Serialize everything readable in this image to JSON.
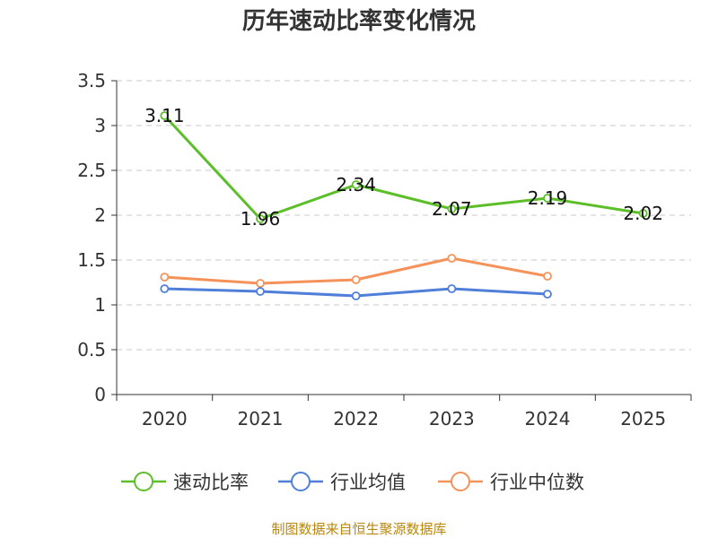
{
  "chart_data": {
    "type": "line",
    "title": "历年速动比率变化情况",
    "categories": [
      "2020",
      "2021",
      "2022",
      "2023",
      "2024",
      "2025"
    ],
    "ylim": [
      0,
      3.5
    ],
    "yticks": [
      "0",
      "0.5",
      "1",
      "1.5",
      "2",
      "2.5",
      "3",
      "3.5"
    ],
    "grid": true,
    "legend_position": "bottom",
    "series": [
      {
        "name": "速动比率",
        "color": "#5cbf2a",
        "values": [
          3.11,
          1.96,
          2.34,
          2.07,
          2.19,
          2.02
        ],
        "labels": [
          "3.11",
          "1.96",
          "2.34",
          "2.07",
          "2.19",
          "2.02"
        ],
        "show_labels": true
      },
      {
        "name": "行业均值",
        "color": "#4f7fd9",
        "values": [
          1.18,
          1.15,
          1.1,
          1.18,
          1.12,
          null
        ],
        "show_labels": false
      },
      {
        "name": "行业中位数",
        "color": "#f5925a",
        "values": [
          1.31,
          1.24,
          1.28,
          1.52,
          1.32,
          null
        ],
        "show_labels": false
      }
    ],
    "source": "制图数据来自恒生聚源数据库"
  }
}
